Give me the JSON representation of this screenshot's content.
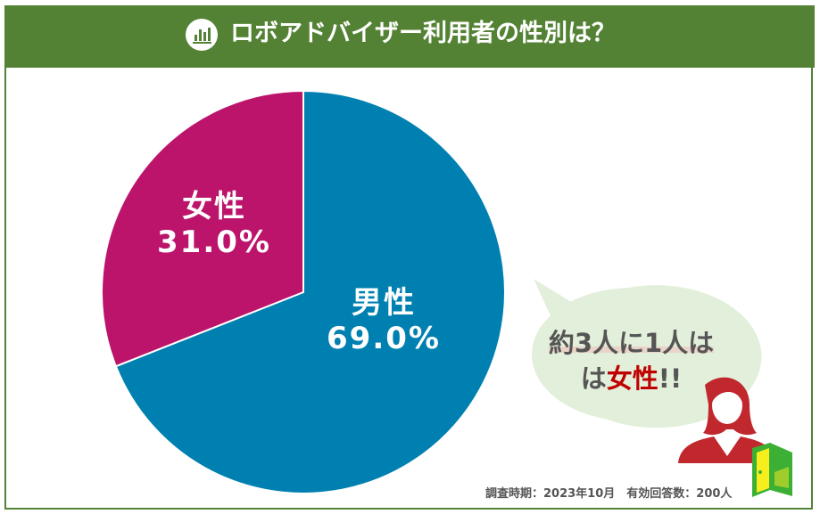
{
  "header": {
    "title": "ロボアドバイザー利用者の性別は？",
    "icon": "bar-chart-icon"
  },
  "chart_data": {
    "type": "pie",
    "title": "ロボアドバイザー利用者の性別は？",
    "slices": [
      {
        "label": "男性",
        "value": 69.0,
        "value_label": "69.0%",
        "color": "#0080B0"
      },
      {
        "label": "女性",
        "value": 31.0,
        "value_label": "31.0%",
        "color": "#BC146B"
      }
    ]
  },
  "callout": {
    "line1": "約3人に1人は",
    "line2_prefix": "は",
    "line2_highlight": "女性",
    "line2_suffix": "!!",
    "icon": "woman-icon"
  },
  "footnote": "調査時期：2023年10月　有効回答数：200人",
  "logo": "door-logo-icon"
}
